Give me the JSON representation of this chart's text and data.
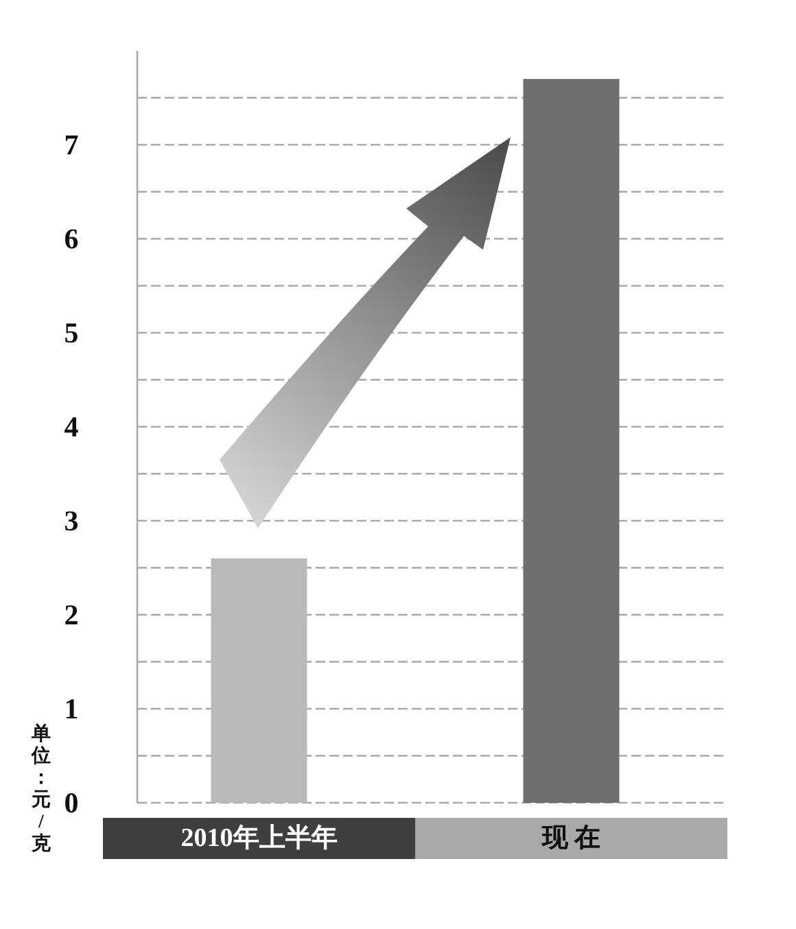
{
  "chart_data": {
    "type": "bar",
    "ylabel": "单位：元/克",
    "categories": [
      "2010年上半年",
      "现 在"
    ],
    "values": [
      2.6,
      7.7
    ],
    "colors": [
      "#b9b9b9",
      "#6f6f6f"
    ],
    "ylim": [
      0,
      8
    ],
    "yticks": [
      0,
      {
        "value": 0.5,
        "label": null
      },
      1,
      {
        "value": 1.5,
        "label": null
      },
      2,
      {
        "value": 2.5,
        "label": null
      },
      3,
      {
        "value": 3.5,
        "label": null
      },
      4,
      {
        "value": 4.5,
        "label": null
      },
      5,
      {
        "value": 5.5,
        "label": null
      },
      6,
      {
        "value": 6.5,
        "label": null
      },
      7,
      {
        "value": 7.5,
        "label": null
      }
    ],
    "grid": "y"
  }
}
